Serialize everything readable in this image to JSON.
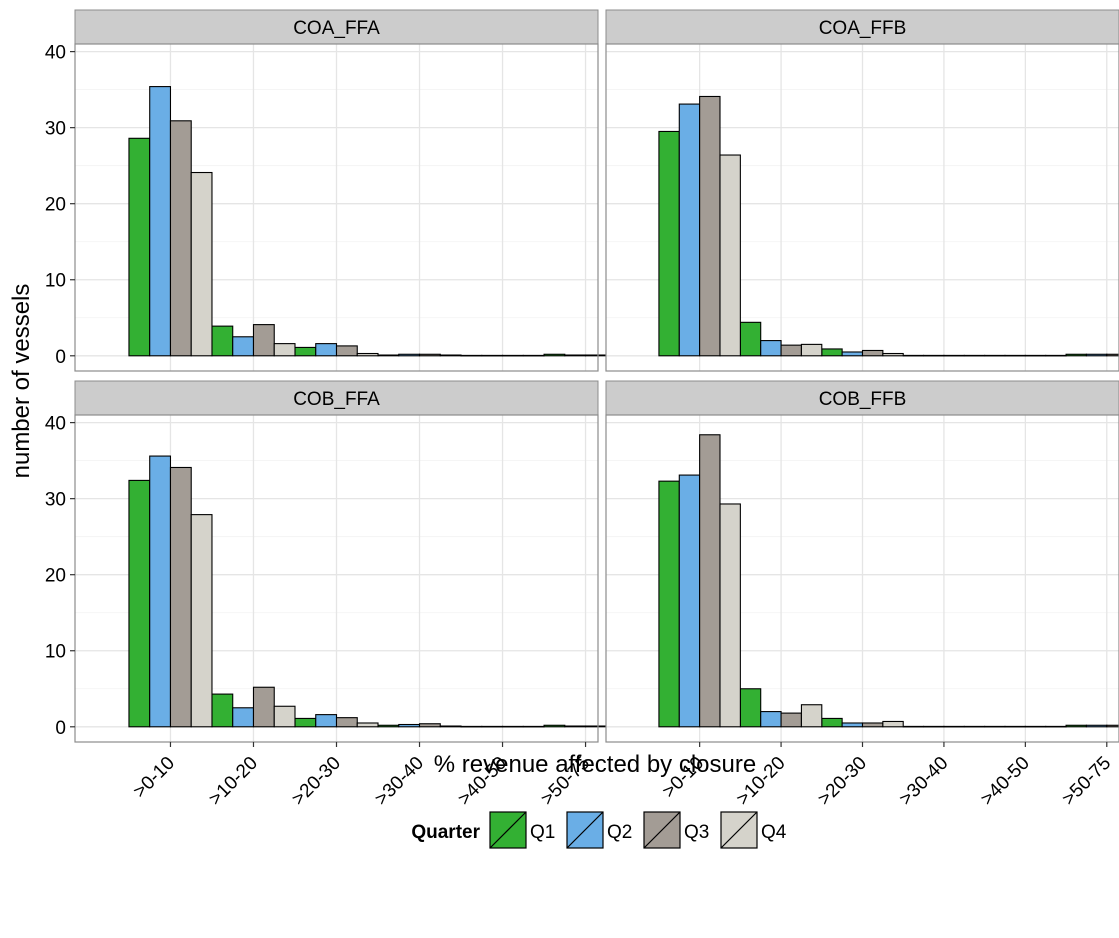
{
  "chart_data": {
    "type": "bar",
    "xlabel": "% revenue affected by closure",
    "ylabel": "number of vessels",
    "ylim": [
      -2,
      41
    ],
    "yticks": [
      0,
      10,
      20,
      30,
      40
    ],
    "grid": true,
    "legend_position": "bottom",
    "categories": [
      ">0-10",
      ">10-20",
      ">20-30",
      ">30-40",
      ">40-50",
      ">50-75"
    ],
    "legend": {
      "title": "Quarter",
      "items": [
        {
          "name": "Q1",
          "color": "#33b033"
        },
        {
          "name": "Q2",
          "color": "#6aaee6"
        },
        {
          "name": "Q3",
          "color": "#a39c95"
        },
        {
          "name": "Q4",
          "color": "#d5d3cb"
        }
      ]
    },
    "panels": [
      {
        "title": "COA_FFA",
        "series": [
          {
            "name": "Q1",
            "values": [
              28.6,
              3.9,
              1.1,
              0.1,
              0.05,
              0.2
            ]
          },
          {
            "name": "Q2",
            "values": [
              35.4,
              2.5,
              1.6,
              0.2,
              0.05,
              0.1
            ]
          },
          {
            "name": "Q3",
            "values": [
              30.9,
              4.1,
              1.3,
              0.2,
              0.05,
              0.1
            ]
          },
          {
            "name": "Q4",
            "values": [
              24.1,
              1.6,
              0.3,
              0.1,
              0.05,
              0.05
            ]
          }
        ]
      },
      {
        "title": "COA_FFB",
        "series": [
          {
            "name": "Q1",
            "values": [
              29.5,
              4.4,
              0.9,
              0.05,
              0.05,
              0.2
            ]
          },
          {
            "name": "Q2",
            "values": [
              33.1,
              2.0,
              0.5,
              0.05,
              0.05,
              0.2
            ]
          },
          {
            "name": "Q3",
            "values": [
              34.1,
              1.4,
              0.7,
              0.05,
              0.05,
              0.2
            ]
          },
          {
            "name": "Q4",
            "values": [
              26.4,
              1.5,
              0.3,
              0.05,
              0.05,
              0.2
            ]
          }
        ]
      },
      {
        "title": "COB_FFA",
        "series": [
          {
            "name": "Q1",
            "values": [
              32.4,
              4.3,
              1.1,
              0.2,
              0.05,
              0.2
            ]
          },
          {
            "name": "Q2",
            "values": [
              35.6,
              2.5,
              1.6,
              0.3,
              0.05,
              0.1
            ]
          },
          {
            "name": "Q3",
            "values": [
              34.1,
              5.2,
              1.2,
              0.4,
              0.05,
              0.1
            ]
          },
          {
            "name": "Q4",
            "values": [
              27.9,
              2.7,
              0.5,
              0.1,
              0.05,
              0.05
            ]
          }
        ]
      },
      {
        "title": "COB_FFB",
        "series": [
          {
            "name": "Q1",
            "values": [
              32.3,
              5.0,
              1.1,
              0.05,
              0.05,
              0.2
            ]
          },
          {
            "name": "Q2",
            "values": [
              33.1,
              2.0,
              0.5,
              0.05,
              0.05,
              0.2
            ]
          },
          {
            "name": "Q3",
            "values": [
              38.4,
              1.8,
              0.5,
              0.05,
              0.05,
              0.2
            ]
          },
          {
            "name": "Q4",
            "values": [
              29.3,
              2.9,
              0.7,
              0.05,
              0.05,
              0.2
            ]
          }
        ]
      }
    ]
  }
}
